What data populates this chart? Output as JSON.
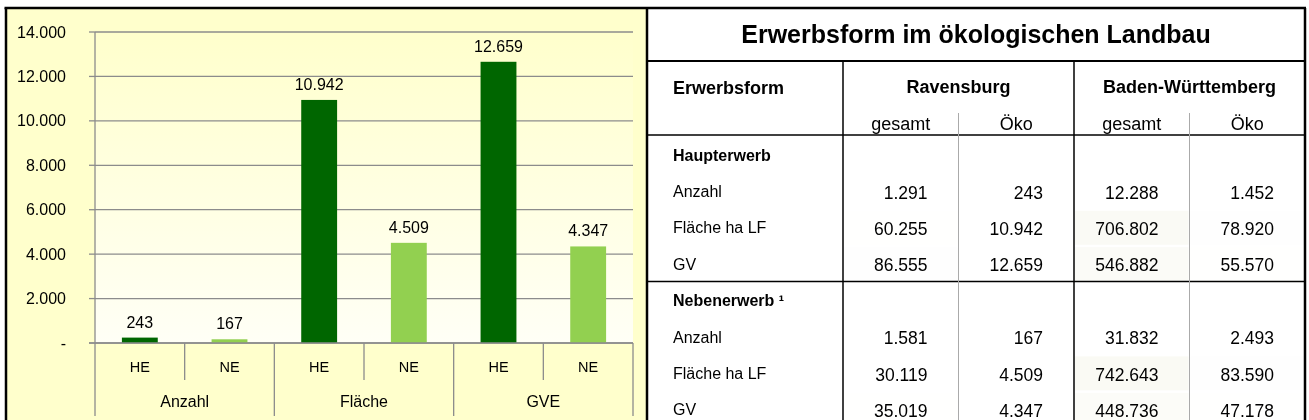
{
  "chart_data": [
    {
      "type": "bar",
      "categories": [
        "HE",
        "NE",
        "HE",
        "NE",
        "HE",
        "NE"
      ],
      "values": [
        243,
        167,
        10942,
        4509,
        12659,
        4347
      ],
      "colors": [
        "#006600",
        "#92d050",
        "#006600",
        "#92d050",
        "#006600",
        "#92d050"
      ],
      "value_labels": [
        "243",
        "167",
        "10.942",
        "4.509",
        "12.659",
        "4.347"
      ],
      "ylim": [
        0,
        14000
      ],
      "yticks": [
        {
          "value": 0,
          "label": "-"
        },
        {
          "value": 2000,
          "label": "2.000"
        },
        {
          "value": 4000,
          "label": "4.000"
        },
        {
          "value": 6000,
          "label": "6.000"
        },
        {
          "value": 8000,
          "label": "8.000"
        },
        {
          "value": 10000,
          "label": "10.000"
        },
        {
          "value": 12000,
          "label": "12.000"
        },
        {
          "value": 14000,
          "label": "14.000"
        }
      ],
      "grid": "y",
      "annotations": [
        "Anzahl",
        "Fläche",
        "GVE"
      ]
    },
    {
      "type": "heatmap",
      "title": "Erwerbsform im ökologischen Landbau",
      "ylabel": "Erwerbsform",
      "annotations": [
        "Ravensburg",
        "Baden-Württemberg"
      ],
      "categories": [
        "gesamt",
        "Öko",
        "gesamt",
        "Öko"
      ],
      "y_categories": [
        "Haupterwerb",
        "Anzahl",
        "Fläche ha LF",
        "GV",
        "Nebenerwerb ¹",
        "Anzahl",
        "Fläche ha LF",
        "GV"
      ],
      "cells": [
        [
          null,
          null,
          null,
          null
        ],
        [
          1291,
          243,
          12288,
          1452
        ],
        [
          60255,
          10942,
          706802,
          78920
        ],
        [
          86555,
          12659,
          546882,
          55570
        ],
        [
          null,
          null,
          null,
          null
        ],
        [
          1581,
          167,
          31832,
          2493
        ],
        [
          30119,
          4509,
          742643,
          83590
        ],
        [
          35019,
          4347,
          448736,
          47178
        ]
      ],
      "cell_labels": [
        [
          null,
          null,
          null,
          null
        ],
        [
          "1.291",
          "243",
          "12.288",
          "1.452"
        ],
        [
          "60.255",
          "10.942",
          "706.802",
          "78.920"
        ],
        [
          "86.555",
          "12.659",
          "546.882",
          "55.570"
        ],
        [
          null,
          null,
          null,
          null
        ],
        [
          "1.581",
          "167",
          "31.832",
          "2.493"
        ],
        [
          "30.119",
          "4.509",
          "742.643",
          "83.590"
        ],
        [
          "35.019",
          "4.347",
          "448.736",
          "47.178"
        ]
      ]
    }
  ]
}
